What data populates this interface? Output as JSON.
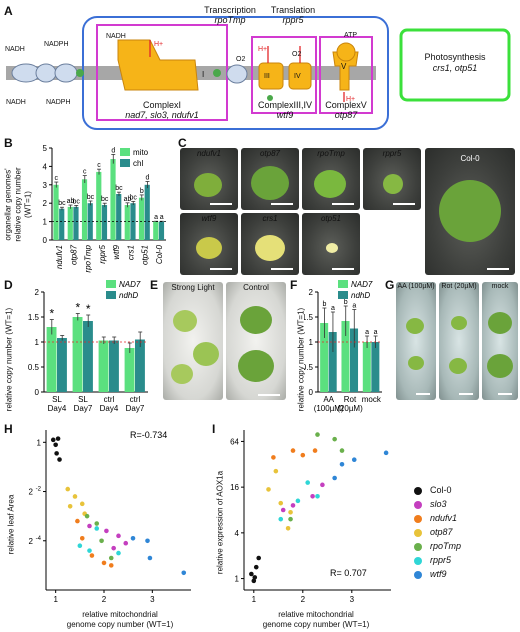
{
  "panel_labels": {
    "a": "A",
    "b": "B",
    "c": "C",
    "d": "D",
    "e": "E",
    "f": "F",
    "g": "G",
    "h": "H",
    "i": "I"
  },
  "panel_a": {
    "transcription_label": "Transcription",
    "transcription_gene": "rpoTmp",
    "translation_label": "Translation",
    "translation_gene": "rppr5",
    "complex1": "ComplexI",
    "complex1_genes": "nad7, slo3, ndufv1",
    "complex34": "ComplexIII,IV",
    "complex34_gene": "wtf9",
    "complex5": "ComplexV",
    "complex5_gene": "otp87",
    "photosynthesis": "Photosynthesis",
    "photosynthesis_genes": "crs1, otp51",
    "nadh": "NADH",
    "nadph": "NADPH",
    "roman_1": "I",
    "roman_3": "III",
    "roman_4": "IV",
    "roman_5": "V",
    "atp": "ATP",
    "o2": "O2",
    "h_plus": "H+",
    "q": "Q",
    "c": "c",
    "e": "e-"
  },
  "panel_b": {
    "ylabel_1": "organellar genomes'",
    "ylabel_2": "relative copy number",
    "ylabel_3": "(WT=1)",
    "legend": [
      {
        "name": "mito",
        "color": "#5be07f"
      },
      {
        "name": "chl",
        "color": "#2a8c8c"
      }
    ]
  },
  "panel_c": {
    "photos": [
      "ndufv1",
      "otp87",
      "rpoTmp",
      "rppr5",
      "wtf9",
      "crs1",
      "otp51",
      "Col-0"
    ]
  },
  "panel_d": {
    "ylabel": "relative copy number (WT=1)",
    "legend": [
      {
        "name": "NAD7",
        "color": "#5be07f"
      },
      {
        "name": "ndhD",
        "color": "#2a8c8c"
      }
    ],
    "ticks": [
      "SL Day4",
      "SL Day7",
      "ctrl Day4",
      "ctrl Day7"
    ]
  },
  "panel_e": {
    "left": "Strong Light",
    "right": "Control"
  },
  "panel_f": {
    "ylabel": "relative copy number (WT=1)",
    "legend": [
      {
        "name": "NAD7",
        "color": "#5be07f"
      },
      {
        "name": "ndhD",
        "color": "#2a8c8c"
      }
    ]
  },
  "panel_g": {
    "left": "AA (100µM)",
    "mid": "Rot (20µM)",
    "right": "mock"
  },
  "panel_h": {
    "xlabel_1": "relative mitochondrial",
    "xlabel_2": "genome copy number (WT=1)",
    "ylabel": "relative leaf Area",
    "r_text": "R=-0.734"
  },
  "panel_i": {
    "xlabel_1": "relative mitochondrial",
    "xlabel_2": "genome copy number (WT=1)",
    "ylabel": "relative expression of AOX1a",
    "r_text": "R= 0.707"
  },
  "legend_right": [
    {
      "name": "Col-0",
      "color": "#111111"
    },
    {
      "name": "slo3",
      "color": "#c43fbf"
    },
    {
      "name": "ndufv1",
      "color": "#f07d1d"
    },
    {
      "name": "otp87",
      "color": "#e8c33a"
    },
    {
      "name": "rpoTmp",
      "color": "#6ab04c"
    },
    {
      "name": "rppr5",
      "color": "#2fd6d6"
    },
    {
      "name": "wtf9",
      "color": "#2f86d6"
    }
  ],
  "chart_data": [
    {
      "type": "bar",
      "panel": "B",
      "categories": [
        "ndufv1",
        "otp87",
        "rpoTmp",
        "rppr5",
        "wtf9",
        "crs1",
        "otp51",
        "Col-0"
      ],
      "series": [
        {
          "name": "mito",
          "values": [
            3.0,
            1.8,
            3.3,
            3.7,
            4.4,
            1.9,
            2.3,
            1.0
          ],
          "errors": [
            0.15,
            0.1,
            0.2,
            0.15,
            0.25,
            0.12,
            0.15,
            0.02
          ],
          "sig": [
            "c",
            "ab",
            "c",
            "c",
            "d",
            "ab",
            "b",
            "a"
          ]
        },
        {
          "name": "chl",
          "values": [
            1.7,
            1.8,
            2.0,
            1.9,
            2.5,
            2.0,
            3.0,
            1.0
          ],
          "errors": [
            0.08,
            0.08,
            0.12,
            0.1,
            0.1,
            0.1,
            0.18,
            0.02
          ],
          "sig": [
            "bc",
            "bc",
            "bc",
            "bc",
            "bc",
            "bc",
            "d",
            "a"
          ]
        }
      ],
      "ylim": [
        0,
        5
      ],
      "yticks": [
        0,
        1,
        2,
        3,
        4,
        5
      ],
      "baseline": 1
    },
    {
      "type": "bar",
      "panel": "D",
      "categories": [
        "SL Day4",
        "SL Day7",
        "ctrl Day4",
        "ctrl Day7"
      ],
      "series": [
        {
          "name": "NAD7",
          "values": [
            1.3,
            1.5,
            1.03,
            0.88
          ],
          "errors": [
            0.15,
            0.07,
            0.07,
            0.1
          ],
          "sig": [
            "*",
            "*",
            "",
            ""
          ]
        },
        {
          "name": "ndhD",
          "values": [
            1.08,
            1.42,
            1.03,
            1.05
          ],
          "errors": [
            0.05,
            0.12,
            0.07,
            0.15
          ],
          "sig": [
            "",
            "*",
            "",
            ""
          ]
        }
      ],
      "ylim": [
        0,
        2.0
      ],
      "yticks": [
        0,
        0.5,
        1,
        1.5,
        2
      ],
      "baseline": 1
    },
    {
      "type": "bar",
      "panel": "F",
      "categories": [
        "AA (100µM)",
        "Rot (20µM)",
        "mock"
      ],
      "series": [
        {
          "name": "NAD7",
          "values": [
            1.38,
            1.42,
            1.0
          ],
          "errors": [
            0.3,
            0.3,
            0.12
          ],
          "sig": [
            "b",
            "b",
            "a"
          ]
        },
        {
          "name": "ndhD",
          "values": [
            1.2,
            1.27,
            1.0
          ],
          "errors": [
            0.4,
            0.38,
            0.12
          ],
          "sig": [
            "a",
            "a",
            "a"
          ]
        }
      ],
      "ylim": [
        0,
        2.0
      ],
      "yticks": [
        0,
        0.5,
        1,
        1.5,
        2
      ],
      "baseline": 1
    },
    {
      "type": "scatter",
      "panel": "H",
      "xlim": [
        0.8,
        3.8
      ],
      "xticks": [
        1,
        2,
        3
      ],
      "ylog2": true,
      "ylim_log2": [
        -6,
        0.5
      ],
      "yticks_log2": [
        0,
        -2,
        -4
      ],
      "points": [
        {
          "g": "Col-0",
          "x": 0.95,
          "y": 0.1
        },
        {
          "g": "Col-0",
          "x": 1.0,
          "y": -0.1
        },
        {
          "g": "Col-0",
          "x": 1.05,
          "y": 0.15
        },
        {
          "g": "Col-0",
          "x": 1.02,
          "y": -0.45
        },
        {
          "g": "Col-0",
          "x": 1.08,
          "y": -0.7
        },
        {
          "g": "slo3",
          "x": 1.7,
          "y": -3.4
        },
        {
          "g": "slo3",
          "x": 2.05,
          "y": -3.6
        },
        {
          "g": "slo3",
          "x": 2.2,
          "y": -4.3
        },
        {
          "g": "slo3",
          "x": 2.3,
          "y": -3.8
        },
        {
          "g": "slo3",
          "x": 2.45,
          "y": -4.1
        },
        {
          "g": "ndufv1",
          "x": 1.45,
          "y": -3.2
        },
        {
          "g": "ndufv1",
          "x": 1.55,
          "y": -3.9
        },
        {
          "g": "ndufv1",
          "x": 1.75,
          "y": -4.6
        },
        {
          "g": "ndufv1",
          "x": 2.0,
          "y": -4.9
        },
        {
          "g": "ndufv1",
          "x": 2.15,
          "y": -5.0
        },
        {
          "g": "otp87",
          "x": 1.25,
          "y": -1.9
        },
        {
          "g": "otp87",
          "x": 1.4,
          "y": -2.2
        },
        {
          "g": "otp87",
          "x": 1.3,
          "y": -2.6
        },
        {
          "g": "otp87",
          "x": 1.55,
          "y": -2.5
        },
        {
          "g": "otp87",
          "x": 1.6,
          "y": -2.9
        },
        {
          "g": "rpoTmp",
          "x": 1.65,
          "y": -3.0
        },
        {
          "g": "rpoTmp",
          "x": 1.85,
          "y": -3.3
        },
        {
          "g": "rpoTmp",
          "x": 1.95,
          "y": -4.0
        },
        {
          "g": "rpoTmp",
          "x": 2.15,
          "y": -4.7
        },
        {
          "g": "rppr5",
          "x": 1.5,
          "y": -4.2
        },
        {
          "g": "rppr5",
          "x": 1.7,
          "y": -4.4
        },
        {
          "g": "rppr5",
          "x": 1.85,
          "y": -3.5
        },
        {
          "g": "rppr5",
          "x": 2.3,
          "y": -4.5
        },
        {
          "g": "wtf9",
          "x": 2.6,
          "y": -3.9
        },
        {
          "g": "wtf9",
          "x": 2.9,
          "y": -4.0
        },
        {
          "g": "wtf9",
          "x": 2.95,
          "y": -4.7
        },
        {
          "g": "wtf9",
          "x": 3.65,
          "y": -5.3
        }
      ]
    },
    {
      "type": "scatter",
      "panel": "I",
      "xlim": [
        0.8,
        3.8
      ],
      "xticks": [
        1,
        2,
        3
      ],
      "ylog2": true,
      "ylim_log2": [
        -0.5,
        6.5
      ],
      "yticks_log2": [
        0,
        2,
        4,
        6
      ],
      "points": [
        {
          "g": "Col-0",
          "x": 0.95,
          "y": 0.2
        },
        {
          "g": "Col-0",
          "x": 1.0,
          "y": -0.1
        },
        {
          "g": "Col-0",
          "x": 1.05,
          "y": 0.5
        },
        {
          "g": "Col-0",
          "x": 1.1,
          "y": 0.9
        },
        {
          "g": "Col-0",
          "x": 1.02,
          "y": 0.05
        },
        {
          "g": "slo3",
          "x": 1.6,
          "y": 3.0
        },
        {
          "g": "slo3",
          "x": 1.8,
          "y": 3.2
        },
        {
          "g": "slo3",
          "x": 2.2,
          "y": 3.6
        },
        {
          "g": "slo3",
          "x": 2.4,
          "y": 4.1
        },
        {
          "g": "ndufv1",
          "x": 1.4,
          "y": 5.3
        },
        {
          "g": "ndufv1",
          "x": 1.8,
          "y": 5.6
        },
        {
          "g": "ndufv1",
          "x": 2.0,
          "y": 5.4
        },
        {
          "g": "ndufv1",
          "x": 2.25,
          "y": 5.6
        },
        {
          "g": "otp87",
          "x": 1.3,
          "y": 3.9
        },
        {
          "g": "otp87",
          "x": 1.45,
          "y": 4.7
        },
        {
          "g": "otp87",
          "x": 1.7,
          "y": 2.2
        },
        {
          "g": "otp87",
          "x": 1.75,
          "y": 2.9
        },
        {
          "g": "otp87",
          "x": 1.55,
          "y": 3.3
        },
        {
          "g": "rpoTmp",
          "x": 1.75,
          "y": 2.6
        },
        {
          "g": "rpoTmp",
          "x": 2.3,
          "y": 6.3
        },
        {
          "g": "rpoTmp",
          "x": 2.65,
          "y": 6.1
        },
        {
          "g": "rpoTmp",
          "x": 2.8,
          "y": 5.6
        },
        {
          "g": "rppr5",
          "x": 1.55,
          "y": 2.6
        },
        {
          "g": "rppr5",
          "x": 1.9,
          "y": 3.4
        },
        {
          "g": "rppr5",
          "x": 2.1,
          "y": 4.2
        },
        {
          "g": "rppr5",
          "x": 2.3,
          "y": 3.6
        },
        {
          "g": "wtf9",
          "x": 2.65,
          "y": 4.4
        },
        {
          "g": "wtf9",
          "x": 2.8,
          "y": 5.0
        },
        {
          "g": "wtf9",
          "x": 3.05,
          "y": 5.2
        },
        {
          "g": "wtf9",
          "x": 3.7,
          "y": 5.5
        }
      ]
    }
  ]
}
